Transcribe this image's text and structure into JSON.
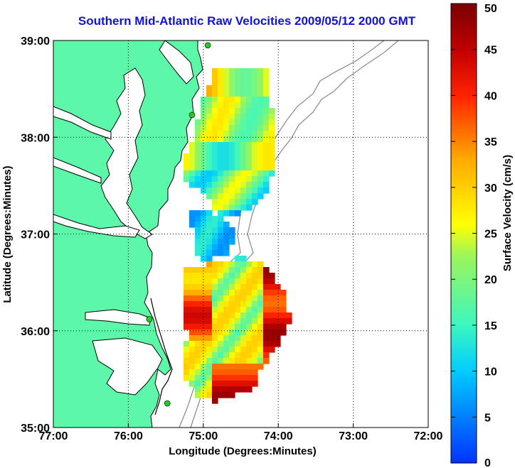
{
  "title": "Southern Mid-Atlantic Raw Velocities 2009/05/12 2000 GMT",
  "xlabel": "Longitude (Degrees:Minutes)",
  "ylabel": "Latitude (Degrees:Minutes)",
  "x_ticks": [
    {
      "lon": -77,
      "label": "77:00"
    },
    {
      "lon": -76,
      "label": "76:00"
    },
    {
      "lon": -75,
      "label": "75:00"
    },
    {
      "lon": -74,
      "label": "74:00"
    },
    {
      "lon": -73,
      "label": "73:00"
    },
    {
      "lon": -72,
      "label": "72:00"
    }
  ],
  "y_ticks": [
    {
      "lat": 39,
      "label": "39:00"
    },
    {
      "lat": 38,
      "label": "38:00"
    },
    {
      "lat": 37,
      "label": "37:00"
    },
    {
      "lat": 36,
      "label": "36:00"
    },
    {
      "lat": 35,
      "label": "35:00"
    }
  ],
  "lon_range": [
    -77,
    -72
  ],
  "lat_range": [
    35,
    39
  ],
  "grid": "dotted",
  "colorbar": {
    "label": "Surface Velocity (cm/s)",
    "min": 0,
    "max": 50,
    "ticks": [
      {
        "value": 50,
        "label": "50"
      },
      {
        "value": 45,
        "label": "45"
      },
      {
        "value": 40,
        "label": "40"
      },
      {
        "value": 35,
        "label": "35"
      },
      {
        "value": 30,
        "label": "30"
      },
      {
        "value": 25,
        "label": "25"
      },
      {
        "value": 20,
        "label": "20"
      },
      {
        "value": 15,
        "label": "15"
      },
      {
        "value": 10,
        "label": "10"
      },
      {
        "value": 5,
        "label": "5"
      },
      {
        "value": 0,
        "label": "0"
      }
    ],
    "colormap": "jet"
  },
  "colors": {
    "land": "#5cf7a8",
    "coastline": "#000000",
    "bathymetry": "#909090",
    "station": "#22cc22",
    "title": "#1010e0"
  },
  "stations": [
    {
      "lon": -74.94,
      "lat": 38.95
    },
    {
      "lon": -75.15,
      "lat": 38.23
    },
    {
      "lon": -75.72,
      "lat": 36.12
    },
    {
      "lon": -75.48,
      "lat": 35.25
    }
  ]
}
